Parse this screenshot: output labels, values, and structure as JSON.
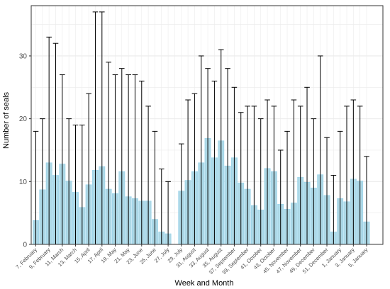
{
  "chart_data": {
    "type": "bar",
    "xlabel": "Week and Month",
    "ylabel": "Number of seals",
    "ylim": [
      0,
      38
    ],
    "yticks": [
      0,
      10,
      20,
      30
    ],
    "grid": true,
    "error_bars": "upper value shown as whisker cap above each bar",
    "colors": {
      "bar": "#add8e6",
      "bar_stroke": "#87ceeb",
      "whisker": "#000000",
      "grid": "#ebebeb",
      "panel_border": "#333333"
    },
    "tick_labels": [
      "7, February",
      "9, February",
      "11, March",
      "13, March",
      "15, April",
      "17, April",
      "19, May",
      "21, May",
      "23, June",
      "25, June",
      "27, July",
      "29, July",
      "31, August",
      "33, August",
      "35, August",
      "37, September",
      "39, September",
      "41, October",
      "43, October",
      "45, November",
      "47, November",
      "49, December",
      "51, December",
      "1, January",
      "3, January",
      "5, January"
    ],
    "weeks": [
      "7",
      "8",
      "9",
      "10",
      "11",
      "12",
      "13",
      "14",
      "15",
      "16",
      "17",
      "18",
      "19",
      "20",
      "21",
      "22",
      "23",
      "24",
      "25",
      "26",
      "27",
      "28",
      "29",
      "30",
      "31",
      "32",
      "33",
      "34",
      "35",
      "36",
      "37",
      "38",
      "39",
      "40",
      "41",
      "42",
      "43",
      "44",
      "45",
      "46",
      "47",
      "48",
      "49",
      "50",
      "51",
      "52",
      "1",
      "2",
      "3",
      "4",
      "5"
    ],
    "values": [
      3.8,
      8.7,
      13.0,
      11.0,
      12.8,
      10.1,
      8.3,
      5.9,
      9.5,
      11.8,
      12.4,
      8.8,
      8.1,
      11.6,
      7.6,
      7.3,
      6.9,
      6.9,
      4.0,
      2.0,
      1.7,
      null,
      8.5,
      10.2,
      11.6,
      13.0,
      16.9,
      13.8,
      16.5,
      12.5,
      13.8,
      9.8,
      8.8,
      6.2,
      5.5,
      12.1,
      11.6,
      6.4,
      5.6,
      6.6,
      10.7,
      9.9,
      9.0,
      11.1,
      7.8,
      2.0,
      7.3,
      6.8,
      10.4,
      10.1,
      3.6
    ],
    "upper": [
      18,
      20,
      33,
      32,
      27,
      20,
      19,
      19,
      24,
      37,
      37,
      29,
      27,
      28,
      27,
      27,
      26,
      22,
      18,
      12,
      10,
      null,
      16,
      23,
      24,
      30,
      28,
      26,
      31,
      28,
      25,
      21,
      22,
      22,
      20,
      23,
      22,
      15,
      18,
      23,
      22,
      25,
      20,
      30,
      17,
      11,
      18,
      22,
      23,
      22,
      14
    ]
  }
}
